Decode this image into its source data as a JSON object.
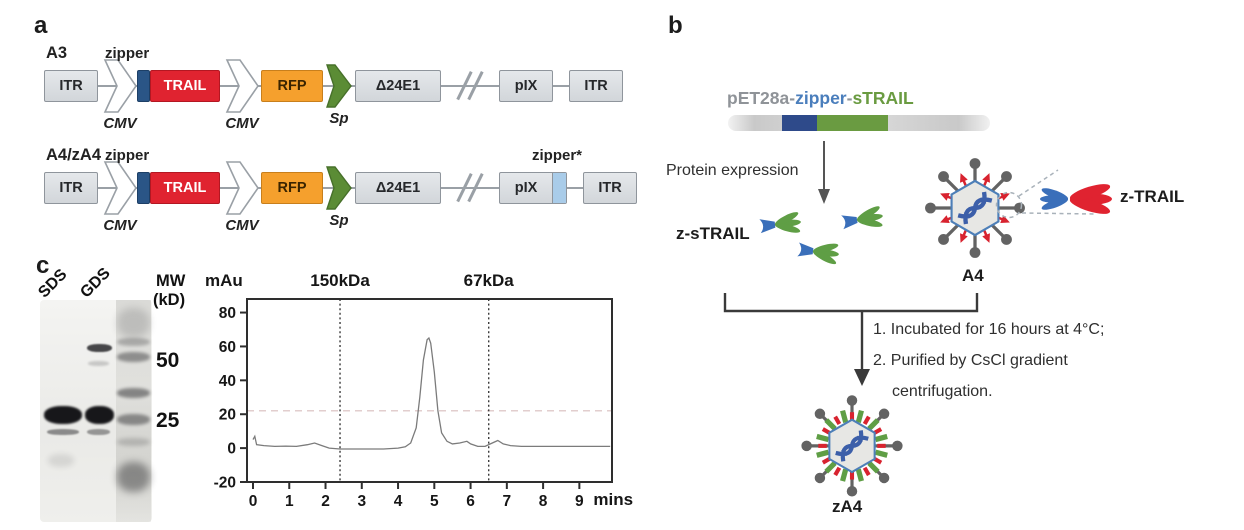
{
  "colors": {
    "trail_red": "#e02330",
    "zipper_navy": "#2a5586",
    "rfp_orange": "#f5a02d",
    "sp_green": "#5b8c35",
    "zipper_light_blue": "#a9cce9",
    "plasmid_text_gray": "#8f9398",
    "plasmid_zipper_blue": "#4a7ebc",
    "plasmid_strail_green": "#6a9b41",
    "construct_box_gray": "#d9dce0",
    "virus_pin_gray": "#636363",
    "dna_blue": "#3c5fa9"
  },
  "panel_a": {
    "label": "a",
    "rows": [
      {
        "name": "A3",
        "zipper": "zipper",
        "itr_left": "ITR",
        "cmv1": "CMV",
        "trail": "TRAIL",
        "cmv2": "CMV",
        "rfp": "RFP",
        "sp": "Sp",
        "delta": "Δ24E1",
        "pix": "pIX",
        "itr_right": "ITR"
      },
      {
        "name": "A4/zA4",
        "zipper": "zipper",
        "zipper_star": "zipper*",
        "itr_left": "ITR",
        "cmv1": "CMV",
        "trail": "TRAIL",
        "cmv2": "CMV",
        "rfp": "RFP",
        "sp": "Sp",
        "delta": "Δ24E1",
        "pix": "pIX",
        "itr_right": "ITR"
      }
    ]
  },
  "panel_b": {
    "label": "b",
    "plasmid_title": {
      "part1": "pET28a",
      "sep1": "-",
      "part2": "zipper",
      "sep2": "-",
      "part3": "sTRAIL"
    },
    "protein_expression": "Protein expression",
    "z_strail_label": "z-sTRAIL",
    "a4_label": "A4",
    "z_trail_label": "z-TRAIL",
    "steps": [
      "1. Incubated for 16 hours at 4°C;",
      "2. Purified by CsCl gradient",
      "centrifugation."
    ],
    "za4_label": "zA4"
  },
  "panel_c": {
    "label": "c",
    "lanes": [
      "SDS",
      "GDS"
    ],
    "mw_header_line1": "MW",
    "mw_header_line2": "(kD)",
    "mw_values": [
      "50",
      "25"
    ]
  },
  "chart_data": {
    "type": "line",
    "title": "",
    "ylabel": "mAu",
    "xlabel": "mins",
    "xlim": [
      0,
      9.9
    ],
    "ylim": [
      -20,
      88
    ],
    "xticks": [
      0,
      1,
      2,
      3,
      4,
      5,
      6,
      7,
      8,
      9
    ],
    "yticks": [
      -20,
      0,
      20,
      40,
      60,
      80
    ],
    "grid": false,
    "legend": false,
    "markers": [
      {
        "label": "150kDa",
        "x": 2.4
      },
      {
        "label": "67kDa",
        "x": 6.5
      }
    ],
    "baseline_reference_y": 22,
    "series": [
      {
        "name": "size-exclusion chromatogram",
        "peak": {
          "x": 4.85,
          "y": 65
        },
        "x": [
          0,
          0.05,
          0.1,
          0.3,
          0.6,
          0.9,
          1.2,
          1.5,
          1.7,
          1.9,
          2.1,
          2.4,
          3.0,
          3.6,
          4.0,
          4.2,
          4.35,
          4.5,
          4.6,
          4.7,
          4.8,
          4.85,
          4.9,
          5.0,
          5.1,
          5.2,
          5.35,
          5.5,
          5.7,
          5.9,
          6.0,
          6.2,
          6.4,
          6.6,
          6.75,
          6.9,
          7.1,
          7.4,
          7.8,
          8.2,
          8.6,
          9.0,
          9.4,
          9.85
        ],
        "y": [
          5,
          7,
          2,
          1.5,
          1,
          1.2,
          1,
          2,
          3,
          1.5,
          0,
          -0.5,
          -0.5,
          -0.5,
          0,
          0.8,
          3,
          12,
          30,
          52,
          64,
          65,
          62,
          45,
          22,
          9,
          4,
          2.5,
          3,
          4,
          2.5,
          1,
          1,
          3,
          4.5,
          2.5,
          1.5,
          1,
          1,
          1,
          1,
          1,
          1,
          1
        ]
      }
    ]
  }
}
